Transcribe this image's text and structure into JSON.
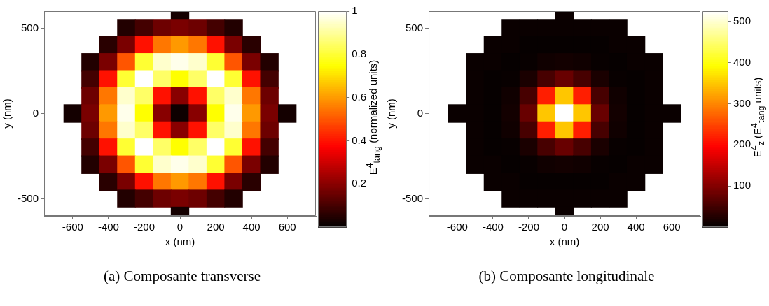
{
  "chart_data": [
    {
      "type": "scatter",
      "xlabel": "x (nm)",
      "ylabel": "y (nm)",
      "clabel": "E$^{4}$$_{tang}$ (normalized units)",
      "annotations": [
        "(a) Composante transverse"
      ],
      "marker": "square",
      "xlim": [
        -760,
        760
      ],
      "ylim": [
        -600,
        600
      ],
      "xticks": [
        -600,
        -400,
        -200,
        0,
        200,
        400,
        600
      ],
      "yticks": [
        -500,
        0,
        500
      ],
      "clim": [
        0,
        1
      ],
      "cticks": [
        0.2,
        0.4,
        0.6,
        0.8,
        1
      ],
      "x": [
        0,
        -300,
        -200,
        -100,
        0,
        100,
        200,
        300,
        -400,
        -300,
        -200,
        -100,
        0,
        100,
        200,
        300,
        400,
        -500,
        -400,
        -300,
        -200,
        -100,
        0,
        100,
        200,
        300,
        400,
        500,
        -500,
        -400,
        -300,
        -200,
        -100,
        0,
        100,
        200,
        300,
        400,
        500,
        -500,
        -400,
        -300,
        -200,
        -100,
        0,
        100,
        200,
        300,
        400,
        500,
        -600,
        -500,
        -400,
        -300,
        -200,
        -100,
        0,
        100,
        200,
        300,
        400,
        500,
        600,
        -500,
        -400,
        -300,
        -200,
        -100,
        0,
        100,
        200,
        300,
        400,
        500,
        -500,
        -400,
        -300,
        -200,
        -100,
        0,
        100,
        200,
        300,
        400,
        500,
        -500,
        -400,
        -300,
        -200,
        -100,
        0,
        100,
        200,
        300,
        400,
        500,
        -400,
        -300,
        -200,
        -100,
        0,
        100,
        200,
        300,
        400,
        -300,
        -200,
        -100,
        0,
        100,
        200,
        300,
        0
      ],
      "values": [
        600,
        500,
        500,
        500,
        500,
        500,
        500,
        500,
        400,
        400,
        400,
        400,
        400,
        400,
        400,
        400,
        400,
        300,
        300,
        300,
        300,
        300,
        300,
        300,
        300,
        300,
        300,
        300,
        200,
        200,
        200,
        200,
        200,
        200,
        200,
        200,
        200,
        200,
        200,
        100,
        100,
        100,
        100,
        100,
        100,
        100,
        100,
        100,
        100,
        100,
        0,
        0,
        0,
        0,
        0,
        0,
        0,
        0,
        0,
        0,
        0,
        0,
        0,
        -100,
        -100,
        -100,
        -100,
        -100,
        -100,
        -100,
        -100,
        -100,
        -100,
        -100,
        -200,
        -200,
        -200,
        -200,
        -200,
        -200,
        -200,
        -200,
        -200,
        -200,
        -200,
        -300,
        -300,
        -300,
        -300,
        -300,
        -300,
        -300,
        -300,
        -300,
        -300,
        -300,
        -400,
        -400,
        -400,
        -400,
        -400,
        -400,
        -400,
        -400,
        -400,
        -500,
        -500,
        -500,
        -500,
        -500,
        -500,
        -500,
        -600
      ],
      "cvalues": [
        0.03,
        0.05,
        0.1,
        0.16,
        0.18,
        0.16,
        0.1,
        0.05,
        0.06,
        0.18,
        0.4,
        0.55,
        0.6,
        0.55,
        0.4,
        0.18,
        0.06,
        0.05,
        0.18,
        0.5,
        0.8,
        0.95,
        0.98,
        0.95,
        0.8,
        0.5,
        0.18,
        0.05,
        0.1,
        0.4,
        0.8,
        1,
        0.85,
        0.75,
        0.85,
        1,
        0.8,
        0.4,
        0.1,
        0.16,
        0.55,
        0.95,
        0.85,
        0.4,
        0.2,
        0.4,
        0.85,
        0.95,
        0.55,
        0.16,
        0.03,
        0.18,
        0.6,
        0.98,
        0.75,
        0.2,
        0.02,
        0.2,
        0.75,
        0.98,
        0.6,
        0.18,
        0.03,
        0.16,
        0.55,
        0.95,
        0.85,
        0.4,
        0.2,
        0.4,
        0.85,
        0.95,
        0.55,
        0.16,
        0.1,
        0.4,
        0.8,
        1,
        0.85,
        0.75,
        0.85,
        1,
        0.8,
        0.4,
        0.1,
        0.05,
        0.18,
        0.5,
        0.8,
        0.95,
        0.98,
        0.95,
        0.8,
        0.5,
        0.18,
        0.05,
        0.06,
        0.18,
        0.4,
        0.55,
        0.6,
        0.55,
        0.4,
        0.18,
        0.06,
        0.05,
        0.1,
        0.16,
        0.18,
        0.16,
        0.1,
        0.05,
        0.03
      ]
    },
    {
      "type": "scatter",
      "xlabel": "x (nm)",
      "ylabel": "y (nm)",
      "clabel": "E$^{4}$$_{z}$ (E$^{4}$$_{tang}$ units)",
      "annotations": [
        "(b) Composante longitudinale"
      ],
      "marker": "square",
      "xlim": [
        -760,
        760
      ],
      "ylim": [
        -600,
        600
      ],
      "xticks": [
        -600,
        -400,
        -200,
        0,
        200,
        400,
        600
      ],
      "yticks": [
        -500,
        0,
        500
      ],
      "clim": [
        0,
        525
      ],
      "cticks": [
        100,
        200,
        300,
        400,
        500
      ],
      "x": [
        0,
        -300,
        -200,
        -100,
        0,
        100,
        200,
        300,
        -400,
        -300,
        -200,
        -100,
        0,
        100,
        200,
        300,
        400,
        -500,
        -400,
        -300,
        -200,
        -100,
        0,
        100,
        200,
        300,
        400,
        500,
        -500,
        -400,
        -300,
        -200,
        -100,
        0,
        100,
        200,
        300,
        400,
        500,
        -500,
        -400,
        -300,
        -200,
        -100,
        0,
        100,
        200,
        300,
        400,
        500,
        -600,
        -500,
        -400,
        -300,
        -200,
        -100,
        0,
        100,
        200,
        300,
        400,
        500,
        600,
        -500,
        -400,
        -300,
        -200,
        -100,
        0,
        100,
        200,
        300,
        400,
        500,
        -500,
        -400,
        -300,
        -200,
        -100,
        0,
        100,
        200,
        300,
        400,
        500,
        -500,
        -400,
        -300,
        -200,
        -100,
        0,
        100,
        200,
        300,
        400,
        500,
        -400,
        -300,
        -200,
        -100,
        0,
        100,
        200,
        300,
        400,
        -300,
        -200,
        -100,
        0,
        100,
        200,
        300,
        0
      ],
      "values": [
        600,
        500,
        500,
        500,
        500,
        500,
        500,
        500,
        400,
        400,
        400,
        400,
        400,
        400,
        400,
        400,
        400,
        300,
        300,
        300,
        300,
        300,
        300,
        300,
        300,
        300,
        300,
        300,
        200,
        200,
        200,
        200,
        200,
        200,
        200,
        200,
        200,
        200,
        200,
        100,
        100,
        100,
        100,
        100,
        100,
        100,
        100,
        100,
        100,
        100,
        0,
        0,
        0,
        0,
        0,
        0,
        0,
        0,
        0,
        0,
        0,
        0,
        0,
        -100,
        -100,
        -100,
        -100,
        -100,
        -100,
        -100,
        -100,
        -100,
        -100,
        -100,
        -200,
        -200,
        -200,
        -200,
        -200,
        -200,
        -200,
        -200,
        -200,
        -200,
        -200,
        -300,
        -300,
        -300,
        -300,
        -300,
        -300,
        -300,
        -300,
        -300,
        -300,
        -300,
        -400,
        -400,
        -400,
        -400,
        -400,
        -400,
        -400,
        -400,
        -400,
        -500,
        -500,
        -500,
        -500,
        -500,
        -500,
        -500,
        -600
      ],
      "cvalues": [
        8,
        8,
        8,
        8,
        8,
        8,
        8,
        8,
        8,
        8,
        5,
        5,
        5,
        5,
        5,
        8,
        8,
        8,
        8,
        5,
        6,
        12,
        15,
        12,
        6,
        5,
        8,
        8,
        8,
        5,
        6,
        20,
        55,
        80,
        55,
        20,
        6,
        5,
        8,
        8,
        5,
        12,
        55,
        220,
        350,
        220,
        55,
        12,
        5,
        8,
        8,
        8,
        5,
        15,
        80,
        350,
        525,
        350,
        80,
        15,
        5,
        8,
        8,
        8,
        5,
        12,
        55,
        220,
        350,
        220,
        55,
        12,
        5,
        8,
        8,
        5,
        6,
        20,
        55,
        80,
        55,
        20,
        6,
        5,
        8,
        8,
        8,
        5,
        6,
        12,
        15,
        12,
        6,
        5,
        8,
        8,
        8,
        8,
        5,
        5,
        5,
        5,
        5,
        8,
        8,
        8,
        8,
        8,
        8,
        8,
        8,
        8,
        8
      ]
    }
  ]
}
